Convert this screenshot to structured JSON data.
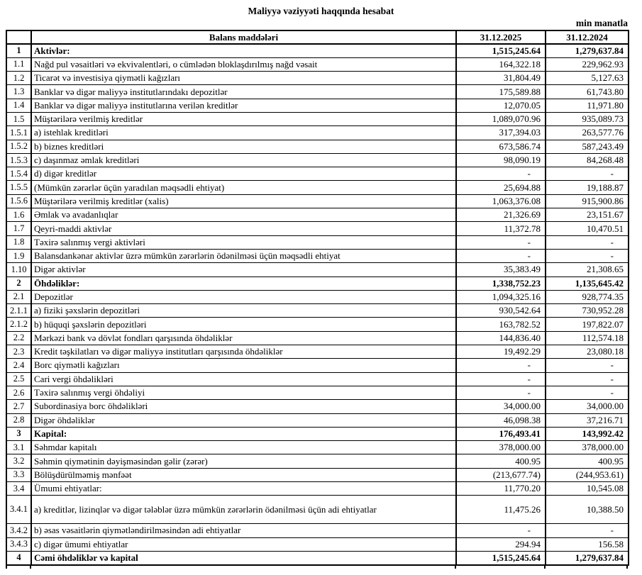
{
  "title": "Maliyyə vəziyyəti haqqında hesabat",
  "unit_label": "min manatla",
  "table": {
    "headers": {
      "no": "",
      "item": "Balans maddələri",
      "col2025": "31.12.2025",
      "col2024": "31.12.2024"
    },
    "rows": [
      {
        "no": "1",
        "label": "Aktivlər:",
        "v2025": "1,515,245.64",
        "v2024": "1,279,637.84",
        "bold": true
      },
      {
        "no": "1.1",
        "label": "Nağd pul vəsaitləri və  ekvivalentləri, o cümlədən bloklaşdırılmış nağd vəsait",
        "v2025": "164,322.18",
        "v2024": "229,962.93"
      },
      {
        "no": "1.2",
        "label": "Ticarət və investisiya qiymətli kağızları",
        "v2025": "31,804.49",
        "v2024": "5,127.63"
      },
      {
        "no": "1.3",
        "label": "Banklar və digər maliyyə institutlarındakı depozitlər",
        "v2025": "175,589.88",
        "v2024": "61,743.80"
      },
      {
        "no": "1.4",
        "label": "Banklar və digər maliyyə institutlarına verilən kreditlər",
        "v2025": "12,070.05",
        "v2024": "11,971.80"
      },
      {
        "no": "1.5",
        "label": "Müştərilərə verilmiş kreditlər",
        "v2025": "1,089,070.96",
        "v2024": "935,089.73"
      },
      {
        "no": "1.5.1",
        "label": "a) istehlak kreditləri",
        "v2025": "317,394.03",
        "v2024": "263,577.76"
      },
      {
        "no": "1.5.2",
        "label": "b) biznes kreditləri",
        "v2025": "673,586.74",
        "v2024": "587,243.49"
      },
      {
        "no": "1.5.3",
        "label": "c) daşınmaz əmlak kreditləri",
        "v2025": "98,090.19",
        "v2024": "84,268.48"
      },
      {
        "no": "1.5.4",
        "label": "d) digər kreditlər",
        "v2025": "-",
        "v2024": "-"
      },
      {
        "no": "1.5.5",
        "label": "(Mümkün zərərlər üçün yaradılan məqsədli ehtiyat)",
        "v2025": "25,694.88",
        "v2024": "19,188.87"
      },
      {
        "no": "1.5.6",
        "label": "Müştərilərə verilmiş kreditlər (xalis)",
        "v2025": "1,063,376.08",
        "v2024": "915,900.86"
      },
      {
        "no": "1.6",
        "label": "Əmlak və avadanlıqlar",
        "v2025": "21,326.69",
        "v2024": "23,151.67"
      },
      {
        "no": "1.7",
        "label": "Qeyri-maddi aktivlər",
        "v2025": "11,372.78",
        "v2024": "10,470.51"
      },
      {
        "no": "1.8",
        "label": "Təxirə salınmış vergi aktivləri",
        "v2025": "-",
        "v2024": "-"
      },
      {
        "no": "1.9",
        "label": "Balansdankənar aktivlər üzrə mümkün zərərlərin ödənilməsi üçün məqsədli ehtiyat",
        "v2025": "-",
        "v2024": "-"
      },
      {
        "no": "1.10",
        "label": "Digər aktivlər",
        "v2025": "35,383.49",
        "v2024": "21,308.65"
      },
      {
        "no": "2",
        "label": "Öhdəliklər:",
        "v2025": "1,338,752.23",
        "v2024": "1,135,645.42",
        "bold": true
      },
      {
        "no": "2.1",
        "label": "Depozitlər",
        "v2025": "1,094,325.16",
        "v2024": "928,774.35"
      },
      {
        "no": "2.1.1",
        "label": "a) fiziki şəxslərin depozitləri",
        "v2025": "930,542.64",
        "v2024": "730,952.28"
      },
      {
        "no": "2.1.2",
        "label": "b) hüquqi şəxslərin depozitləri",
        "v2025": "163,782.52",
        "v2024": "197,822.07"
      },
      {
        "no": "2.2",
        "label": "Mərkəzi bank və dövlət fondları qarşısında öhdəliklər",
        "v2025": "144,836.40",
        "v2024": "112,574.18"
      },
      {
        "no": "2.3",
        "label": "Kredit təşkilatları və digər maliyyə institutları qarşısında öhdəliklər",
        "v2025": "19,492.29",
        "v2024": "23,080.18"
      },
      {
        "no": "2.4",
        "label": "Borc qiymətli kağızları",
        "v2025": "-",
        "v2024": "-"
      },
      {
        "no": "2.5",
        "label": "Cari vergi öhdəlikləri",
        "v2025": "-",
        "v2024": "-"
      },
      {
        "no": "2.6",
        "label": "Təxirə salınmış vergi öhdəliyi",
        "v2025": "-",
        "v2024": "-"
      },
      {
        "no": "2.7",
        "label": "Subordinasiya borc öhdəlikləri",
        "v2025": "34,000.00",
        "v2024": "34,000.00"
      },
      {
        "no": "2.8",
        "label": "Digər öhdəliklər",
        "v2025": "46,098.38",
        "v2024": "37,216.71"
      },
      {
        "no": "3",
        "label": "Kapital:",
        "v2025": "176,493.41",
        "v2024": "143,992.42",
        "bold": true
      },
      {
        "no": "3.1",
        "label": "Səhmdar kapitalı",
        "v2025": "378,000.00",
        "v2024": "378,000.00"
      },
      {
        "no": "3.2",
        "label": "Səhmin qiymətinin dəyişməsindən gəlir (zərər)",
        "v2025": "400.95",
        "v2024": "400.95"
      },
      {
        "no": "3.3",
        "label": "Bölüşdürülməmiş mənfəət",
        "v2025": "(213,677.74)",
        "v2024": "(244,953.61)"
      },
      {
        "no": "3.4",
        "label": "Ümumi ehtiyatlar:",
        "v2025": "11,770.20",
        "v2024": "10,545.08"
      },
      {
        "no": "3.4.1",
        "label": "a) kreditlər, lizinqlər və digər tələblər üzrə mümkün zərərlərin ödənilməsi üçün adi ehtiyatlar",
        "v2025": "11,475.26",
        "v2024": "10,388.50",
        "tall": true
      },
      {
        "no": "3.4.2",
        "label": "b) əsas vəsaitlərin qiymətləndirilməsindən adi ehtiyatlar",
        "v2025": "-",
        "v2024": "-"
      },
      {
        "no": "3.4.3",
        "label": "c) digər ümumi ehtiyatlar",
        "v2025": "294.94",
        "v2024": "156.58"
      },
      {
        "no": "4",
        "label": "Cəmi öhdəliklər və kapital",
        "v2025": "1,515,245.64",
        "v2024": "1,279,637.84",
        "bold": true
      }
    ]
  }
}
